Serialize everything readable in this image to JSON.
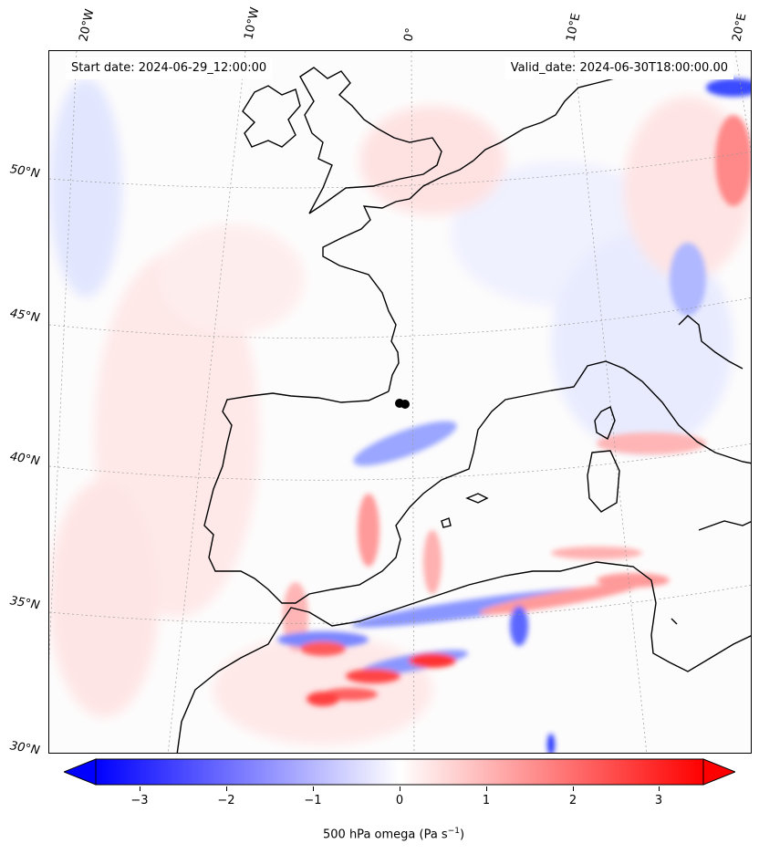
{
  "map": {
    "start_date": "Start date: 2024-06-29_12:00:00",
    "valid_date": "Valid_date: 2024-06-30T18:00:00.00",
    "lon_labels": [
      "20°W",
      "10°W",
      "0°",
      "10°E",
      "20°E"
    ],
    "lat_labels": [
      "50°N",
      "45°N",
      "40°N",
      "35°N",
      "30°N"
    ],
    "colors": {
      "negative": "#0000ff",
      "neutral": "#ffffff",
      "positive": "#ff0000",
      "coast": "#000000"
    }
  },
  "colorbar": {
    "label": "500 hPa omega (Pa s",
    "label_sup": "−1",
    "label_end": ")",
    "ticks": [
      "−3",
      "−2",
      "−1",
      "0",
      "1",
      "2",
      "3"
    ],
    "range": [
      -3.5,
      3.5
    ]
  }
}
